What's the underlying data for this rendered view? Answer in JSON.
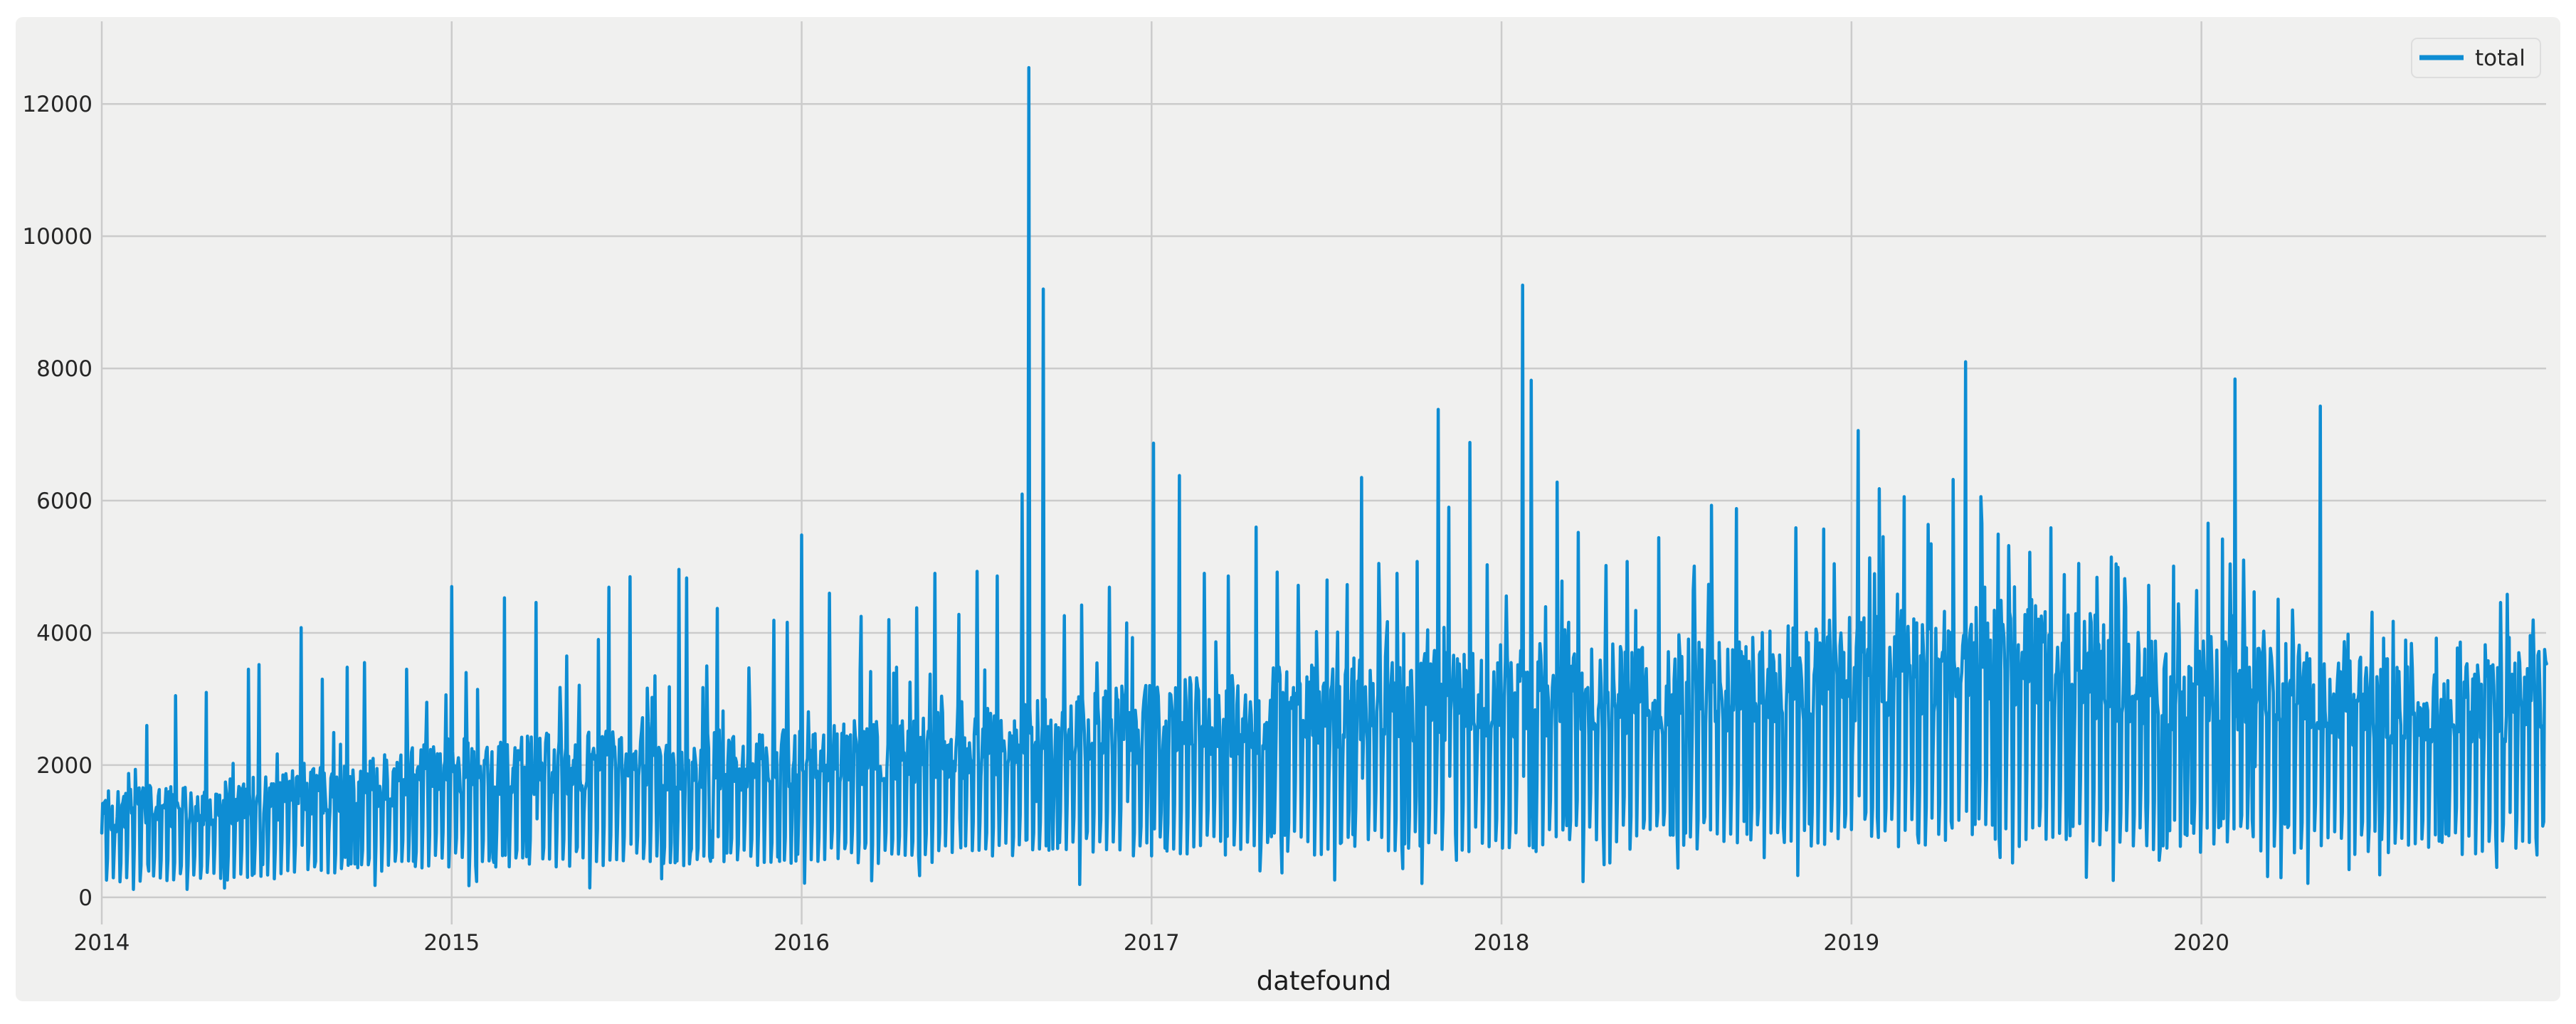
{
  "figure": {
    "page_background": "#ffffff",
    "background": "#f0f0ef",
    "legend_border": "#dddddd"
  },
  "chart_data": {
    "type": "line",
    "title": "",
    "xlabel": "datefound",
    "ylabel": "",
    "legend": {
      "position": "upper right",
      "entries": [
        {
          "label": "total",
          "color": "#0e8dd3"
        }
      ]
    },
    "x_tick_values": [
      2014,
      2015,
      2016,
      2017,
      2018,
      2019,
      2020
    ],
    "x_tick_labels": [
      "2014",
      "2015",
      "2016",
      "2017",
      "2018",
      "2019",
      "2020"
    ],
    "y_tick_values": [
      0,
      2000,
      4000,
      6000,
      8000,
      10000,
      12000
    ],
    "y_tick_labels": [
      "0",
      "2000",
      "4000",
      "6000",
      "8000",
      "10000",
      "12000"
    ],
    "xlim": [
      2014.0,
      2020.985
    ],
    "ylim": [
      -410,
      13250
    ],
    "grid": {
      "show": true,
      "color": "#cbcbcb",
      "linewidth": 2.5
    },
    "style": {
      "line_color": "#0e8dd3",
      "line_width": 4.5,
      "tick_color": "#262626"
    },
    "series": [
      {
        "name": "total",
        "frequency": "daily",
        "synthesis": {
          "seed": 7,
          "points_per_year": 365,
          "weekday_band": [
            0.55,
            0.5
          ],
          "saturday_band": [
            0.85,
            0.5
          ],
          "sunday_band": [
            0.1,
            0.3
          ],
          "minor_spike_prob": 0.045,
          "minor_spike_gain": [
            1.02,
            0.32
          ],
          "deep_dip_prob": 0.03,
          "deep_dip_factor": 0.3,
          "value_clamp": [
            40,
            13100
          ],
          "envelope": [
            [
              2014.0,
              1550,
              250
            ],
            [
              2014.25,
              1650,
              280
            ],
            [
              2014.5,
              1800,
              320
            ],
            [
              2014.75,
              2050,
              420
            ],
            [
              2015.0,
              2350,
              500
            ],
            [
              2015.5,
              2450,
              520
            ],
            [
              2016.0,
              2500,
              560
            ],
            [
              2016.5,
              2750,
              620
            ],
            [
              2017.0,
              3150,
              700
            ],
            [
              2017.5,
              3450,
              750
            ],
            [
              2018.0,
              3700,
              800
            ],
            [
              2018.5,
              3750,
              850
            ],
            [
              2019.0,
              4100,
              900
            ],
            [
              2019.4,
              4350,
              900
            ],
            [
              2019.7,
              4150,
              850
            ],
            [
              2019.95,
              3700,
              800
            ],
            [
              2020.15,
              3950,
              800
            ],
            [
              2020.45,
              3500,
              750
            ],
            [
              2020.75,
              3400,
              750
            ],
            [
              2020.985,
              3650,
              800
            ]
          ],
          "spikes": [
            [
              2014.13,
              2600
            ],
            [
              2014.21,
              3050
            ],
            [
              2014.3,
              3100
            ],
            [
              2014.42,
              3450
            ],
            [
              2014.45,
              3520
            ],
            [
              2014.57,
              4080
            ],
            [
              2014.63,
              3300
            ],
            [
              2014.7,
              3480
            ],
            [
              2014.75,
              3550
            ],
            [
              2014.87,
              3450
            ],
            [
              2014.93,
              2950
            ],
            [
              2015.0,
              4700
            ],
            [
              2015.04,
              3400
            ],
            [
              2015.15,
              4530
            ],
            [
              2015.24,
              4460
            ],
            [
              2015.33,
              3650
            ],
            [
              2015.42,
              3900
            ],
            [
              2015.45,
              4690
            ],
            [
              2015.51,
              4850
            ],
            [
              2015.58,
              3350
            ],
            [
              2015.65,
              4960
            ],
            [
              2015.67,
              4830
            ],
            [
              2015.73,
              3500
            ],
            [
              2015.76,
              4370
            ],
            [
              2015.85,
              3470
            ],
            [
              2015.92,
              4190
            ],
            [
              2015.96,
              4160
            ],
            [
              2016.0,
              5480
            ],
            [
              2016.08,
              4600
            ],
            [
              2016.17,
              4250
            ],
            [
              2016.25,
              4200
            ],
            [
              2016.33,
              4380
            ],
            [
              2016.38,
              4900
            ],
            [
              2016.45,
              4280
            ],
            [
              2016.5,
              4930
            ],
            [
              2016.56,
              4860
            ],
            [
              2016.63,
              6100
            ],
            [
              2016.648,
              12550
            ],
            [
              2016.69,
              9200
            ],
            [
              2016.75,
              4260
            ],
            [
              2016.8,
              4420
            ],
            [
              2016.88,
              4690
            ],
            [
              2016.93,
              4150
            ],
            [
              2017.005,
              6870
            ],
            [
              2017.08,
              6380
            ],
            [
              2017.15,
              4900
            ],
            [
              2017.22,
              4860
            ],
            [
              2017.3,
              5600
            ],
            [
              2017.36,
              4920
            ],
            [
              2017.42,
              4720
            ],
            [
              2017.5,
              4800
            ],
            [
              2017.56,
              4730
            ],
            [
              2017.6,
              6350
            ],
            [
              2017.65,
              5050
            ],
            [
              2017.7,
              4900
            ],
            [
              2017.76,
              5080
            ],
            [
              2017.82,
              7380
            ],
            [
              2017.85,
              5900
            ],
            [
              2017.91,
              6880
            ],
            [
              2017.96,
              5030
            ],
            [
              2018.06,
              9260
            ],
            [
              2018.085,
              7820
            ],
            [
              2018.16,
              6280
            ],
            [
              2018.22,
              5520
            ],
            [
              2018.3,
              5020
            ],
            [
              2018.36,
              5080
            ],
            [
              2018.45,
              5440
            ],
            [
              2018.55,
              5010
            ],
            [
              2018.6,
              5930
            ],
            [
              2018.67,
              5880
            ],
            [
              2018.75,
              4920
            ],
            [
              2018.84,
              5590
            ],
            [
              2018.92,
              5570
            ],
            [
              2019.02,
              7060
            ],
            [
              2019.08,
              6180
            ],
            [
              2019.15,
              6060
            ],
            [
              2019.22,
              5640
            ],
            [
              2019.29,
              6320
            ],
            [
              2019.325,
              8100
            ],
            [
              2019.37,
              6060
            ],
            [
              2019.45,
              5320
            ],
            [
              2019.51,
              5220
            ],
            [
              2019.57,
              5590
            ],
            [
              2019.65,
              5050
            ],
            [
              2019.7,
              4840
            ],
            [
              2019.78,
              4820
            ],
            [
              2019.85,
              4720
            ],
            [
              2019.92,
              5010
            ],
            [
              2020.02,
              5660
            ],
            [
              2020.06,
              5420
            ],
            [
              2020.095,
              7840
            ],
            [
              2020.15,
              4620
            ],
            [
              2020.22,
              4510
            ],
            [
              2020.34,
              7430
            ],
            [
              2020.42,
              3980
            ],
            [
              2020.52,
              3920
            ],
            [
              2020.6,
              3840
            ],
            [
              2020.67,
              3920
            ],
            [
              2020.74,
              3860
            ],
            [
              2020.81,
              3820
            ],
            [
              2020.88,
              3930
            ],
            [
              2020.94,
              3960
            ]
          ],
          "dips": [
            [
              2014.35,
              140
            ],
            [
              2014.78,
              180
            ],
            [
              2015.07,
              240
            ],
            [
              2015.6,
              280
            ],
            [
              2016.2,
              250
            ],
            [
              2016.67,
              1450
            ],
            [
              2017.31,
              400
            ],
            [
              2017.87,
              560
            ],
            [
              2018.31,
              520
            ],
            [
              2018.75,
              600
            ],
            [
              2019.46,
              520
            ],
            [
              2019.88,
              560
            ],
            [
              2020.51,
              340
            ],
            [
              2020.96,
              640
            ]
          ]
        }
      }
    ]
  }
}
